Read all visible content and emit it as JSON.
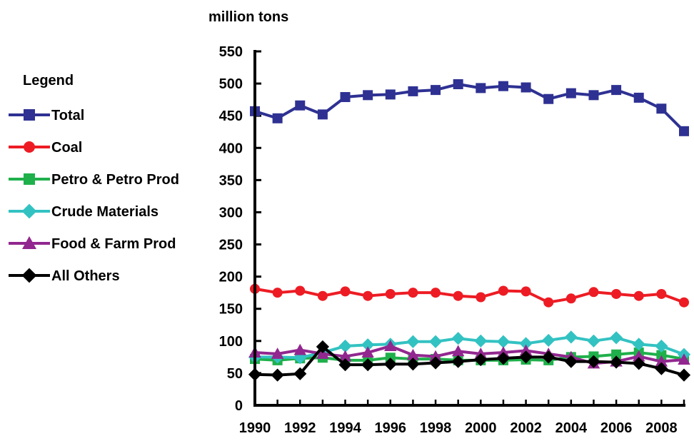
{
  "chart_data": {
    "type": "line",
    "title": "",
    "ylabel": "million tons",
    "xlabel": "",
    "legend_title": "Legend",
    "legend_position": "left",
    "grid": false,
    "ylim": [
      0,
      550
    ],
    "yticks": [
      0,
      50,
      100,
      150,
      200,
      250,
      300,
      350,
      400,
      450,
      500,
      550
    ],
    "xlim": [
      1990,
      2009
    ],
    "xticks": [
      1990,
      1992,
      1994,
      1996,
      1998,
      2000,
      2002,
      2004,
      2006,
      2008
    ],
    "x": [
      1990,
      1991,
      1992,
      1993,
      1994,
      1995,
      1996,
      1997,
      1998,
      1999,
      2000,
      2001,
      2002,
      2003,
      2004,
      2005,
      2006,
      2007,
      2008,
      2009
    ],
    "series": [
      {
        "name": "Total",
        "color": "#2e3192",
        "marker": "square",
        "values": [
          457,
          446,
          466,
          452,
          479,
          482,
          483,
          488,
          490,
          499,
          493,
          496,
          494,
          476,
          485,
          482,
          490,
          478,
          461,
          426
        ]
      },
      {
        "name": "Coal",
        "color": "#ed1c24",
        "marker": "circle",
        "values": [
          181,
          175,
          178,
          170,
          177,
          170,
          173,
          175,
          175,
          170,
          168,
          178,
          177,
          160,
          166,
          176,
          173,
          170,
          173,
          160
        ]
      },
      {
        "name": "Petro & Petro Prod",
        "color": "#1fb04b",
        "marker": "square",
        "values": [
          72,
          70,
          73,
          74,
          70,
          70,
          74,
          72,
          72,
          70,
          70,
          70,
          71,
          70,
          75,
          76,
          79,
          82,
          78,
          72
        ]
      },
      {
        "name": "Crude Materials",
        "color": "#33c2c2",
        "marker": "diamond",
        "values": [
          75,
          75,
          74,
          82,
          92,
          94,
          95,
          99,
          99,
          104,
          100,
          99,
          96,
          101,
          106,
          100,
          105,
          95,
          92,
          79
        ]
      },
      {
        "name": "Food & Farm Prod",
        "color": "#92278f",
        "marker": "triangle",
        "values": [
          82,
          80,
          86,
          80,
          76,
          82,
          92,
          78,
          76,
          84,
          80,
          82,
          85,
          80,
          75,
          65,
          68,
          76,
          68,
          71
        ]
      },
      {
        "name": "All Others",
        "color": "#000000",
        "marker": "diamond",
        "values": [
          48,
          47,
          49,
          91,
          63,
          63,
          64,
          64,
          66,
          68,
          71,
          73,
          75,
          75,
          68,
          68,
          67,
          65,
          57,
          47
        ]
      }
    ]
  }
}
